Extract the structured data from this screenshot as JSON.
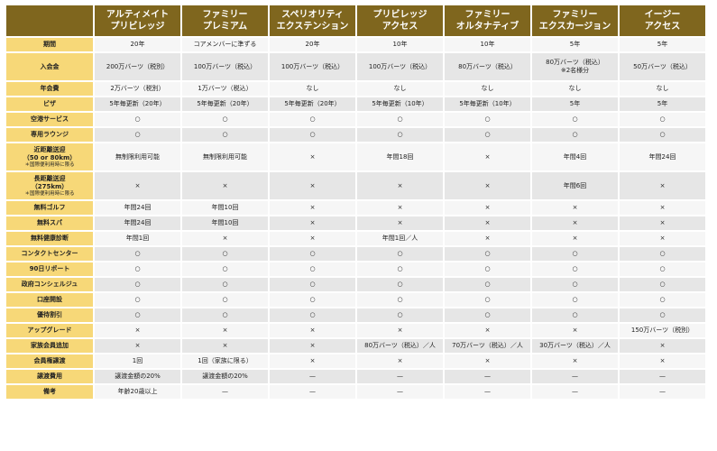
{
  "columns": [
    {
      "line1": "アルティメイト",
      "line2": "プリビレッジ"
    },
    {
      "line1": "ファミリー",
      "line2": "プレミアム"
    },
    {
      "line1": "スペリオリティ",
      "line2": "エクステンション"
    },
    {
      "line1": "プリビレッジ",
      "line2": "アクセス"
    },
    {
      "line1": "ファミリー",
      "line2": "オルタナティブ"
    },
    {
      "line1": "ファミリー",
      "line2": "エクスカージョン"
    },
    {
      "line1": "イージー",
      "line2": "アクセス"
    }
  ],
  "rows": [
    {
      "label": "期間",
      "cells": [
        "20年",
        "コアメンバーに準ずる",
        "20年",
        "10年",
        "10年",
        "5年",
        "5年"
      ]
    },
    {
      "label": "入会金",
      "cells": [
        "200万バーツ（税別）",
        "100万バーツ（税込）",
        "100万バーツ（税込）",
        "100万バーツ（税込）",
        "80万バーツ（税込）",
        "80万バーツ（税込）\n※2名様分",
        "50万バーツ（税込）"
      ]
    },
    {
      "label": "年会費",
      "cells": [
        "2万バーツ（税別）",
        "1万バーツ（税込）",
        "なし",
        "なし",
        "なし",
        "なし",
        "なし"
      ]
    },
    {
      "label": "ビザ",
      "cells": [
        "5年毎更新（20年）",
        "5年毎更新（20年）",
        "5年毎更新（20年）",
        "5年毎更新（10年）",
        "5年毎更新（10年）",
        "5年",
        "5年"
      ]
    },
    {
      "label": "空港サービス",
      "cells": [
        "○",
        "○",
        "○",
        "○",
        "○",
        "○",
        "○"
      ]
    },
    {
      "label": "専用ラウンジ",
      "cells": [
        "○",
        "○",
        "○",
        "○",
        "○",
        "○",
        "○"
      ]
    },
    {
      "label": "近距離送迎",
      "label_sub": "（50 or 80km）",
      "label_note": "＊国際便利用時に限る",
      "cells": [
        "無制限利用可能",
        "無制限利用可能",
        "×",
        "年間18回",
        "×",
        "年間4回",
        "年間24回"
      ]
    },
    {
      "label": "長距離送迎",
      "label_sub": "（275km）",
      "label_note": "＊国際便利用時に限る",
      "cells": [
        "×",
        "×",
        "×",
        "×",
        "×",
        "年間6回",
        "×"
      ]
    },
    {
      "label": "無料ゴルフ",
      "cells": [
        "年間24回",
        "年間10回",
        "×",
        "×",
        "×",
        "×",
        "×"
      ]
    },
    {
      "label": "無料スパ",
      "cells": [
        "年間24回",
        "年間10回",
        "×",
        "×",
        "×",
        "×",
        "×"
      ]
    },
    {
      "label": "無料健康診断",
      "cells": [
        "年間1回",
        "×",
        "×",
        "年間1回／人",
        "×",
        "×",
        "×"
      ]
    },
    {
      "label": "コンタクトセンター",
      "cells": [
        "○",
        "○",
        "○",
        "○",
        "○",
        "○",
        "○"
      ]
    },
    {
      "label": "90日リポート",
      "cells": [
        "○",
        "○",
        "○",
        "○",
        "○",
        "○",
        "○"
      ]
    },
    {
      "label": "政府コンシェルジュ",
      "cells": [
        "○",
        "○",
        "○",
        "○",
        "○",
        "○",
        "○"
      ]
    },
    {
      "label": "口座開設",
      "cells": [
        "○",
        "○",
        "○",
        "○",
        "○",
        "○",
        "○"
      ]
    },
    {
      "label": "優待割引",
      "cells": [
        "○",
        "○",
        "○",
        "○",
        "○",
        "○",
        "○"
      ]
    },
    {
      "label": "アップグレード",
      "cells": [
        "×",
        "×",
        "×",
        "×",
        "×",
        "×",
        "150万バーツ（税別）"
      ]
    },
    {
      "label": "家族会員追加",
      "cells": [
        "×",
        "×",
        "×",
        "80万バーツ（税込）／人",
        "70万バーツ（税込）／人",
        "30万バーツ（税込）／人",
        "×"
      ]
    },
    {
      "label": "会員権譲渡",
      "cells": [
        "1回",
        "1回（家族に限る）",
        "×",
        "×",
        "×",
        "×",
        "×"
      ]
    },
    {
      "label": "譲渡費用",
      "cells": [
        "譲渡金額の20%",
        "譲渡金額の20%",
        "—",
        "—",
        "—",
        "—",
        "—"
      ]
    },
    {
      "label": "備考",
      "cells": [
        "年齢20歳以上",
        "—",
        "—",
        "—",
        "—",
        "—",
        "—"
      ]
    }
  ]
}
